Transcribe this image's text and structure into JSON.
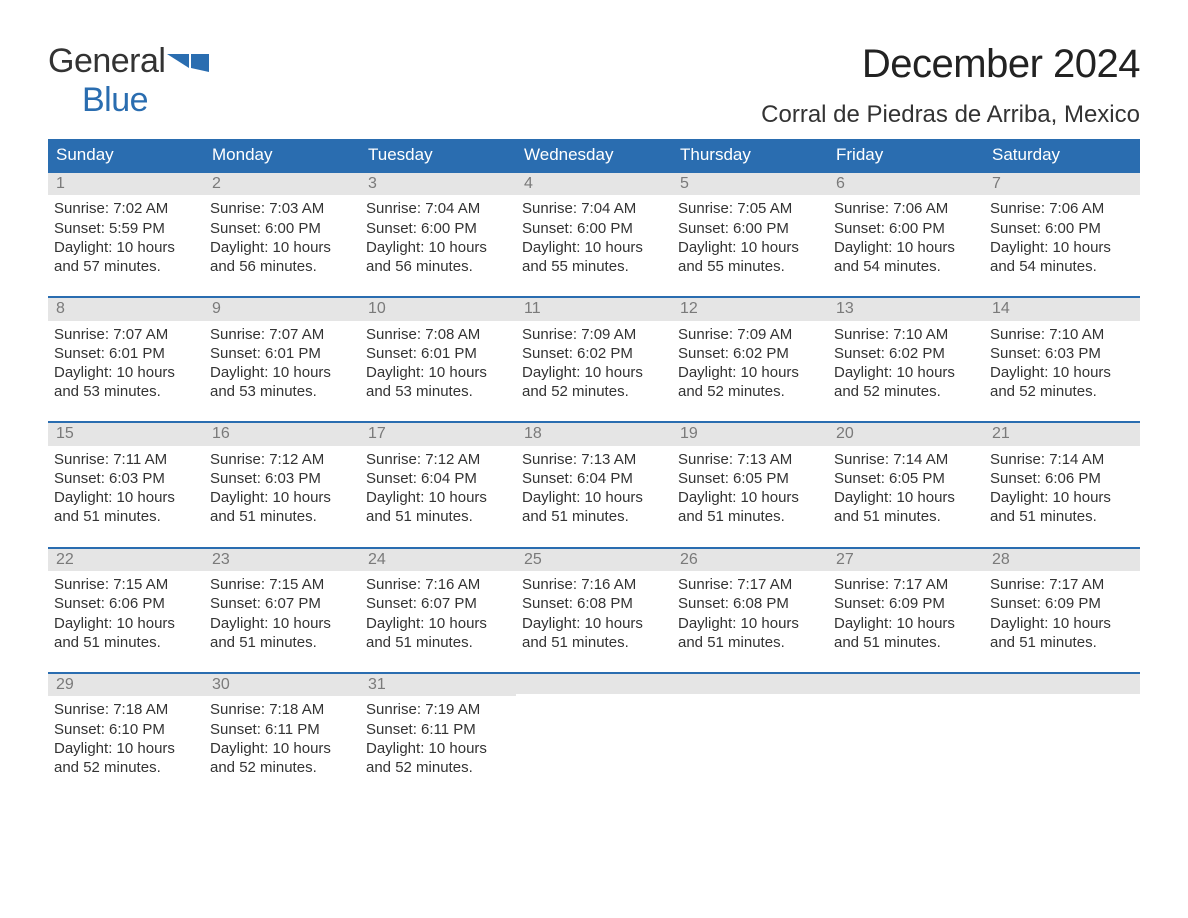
{
  "logo": {
    "general": "General",
    "blue": "Blue"
  },
  "title": "December 2024",
  "location": "Corral de Piedras de Arriba, Mexico",
  "colors": {
    "header_bg": "#2a6db0",
    "header_text": "#ffffff",
    "daynum_bg": "#e5e5e5",
    "daynum_text": "#7a7a7a",
    "border": "#2a6db0",
    "body_text": "#333333",
    "page_bg": "#ffffff"
  },
  "typography": {
    "title_fontsize": 40,
    "location_fontsize": 24,
    "dayhead_fontsize": 17,
    "body_fontsize": 15,
    "font_family": "Arial"
  },
  "day_headers": [
    "Sunday",
    "Monday",
    "Tuesday",
    "Wednesday",
    "Thursday",
    "Friday",
    "Saturday"
  ],
  "weeks": [
    [
      {
        "n": "1",
        "sunrise": "Sunrise: 7:02 AM",
        "sunset": "Sunset: 5:59 PM",
        "day1": "Daylight: 10 hours",
        "day2": "and 57 minutes."
      },
      {
        "n": "2",
        "sunrise": "Sunrise: 7:03 AM",
        "sunset": "Sunset: 6:00 PM",
        "day1": "Daylight: 10 hours",
        "day2": "and 56 minutes."
      },
      {
        "n": "3",
        "sunrise": "Sunrise: 7:04 AM",
        "sunset": "Sunset: 6:00 PM",
        "day1": "Daylight: 10 hours",
        "day2": "and 56 minutes."
      },
      {
        "n": "4",
        "sunrise": "Sunrise: 7:04 AM",
        "sunset": "Sunset: 6:00 PM",
        "day1": "Daylight: 10 hours",
        "day2": "and 55 minutes."
      },
      {
        "n": "5",
        "sunrise": "Sunrise: 7:05 AM",
        "sunset": "Sunset: 6:00 PM",
        "day1": "Daylight: 10 hours",
        "day2": "and 55 minutes."
      },
      {
        "n": "6",
        "sunrise": "Sunrise: 7:06 AM",
        "sunset": "Sunset: 6:00 PM",
        "day1": "Daylight: 10 hours",
        "day2": "and 54 minutes."
      },
      {
        "n": "7",
        "sunrise": "Sunrise: 7:06 AM",
        "sunset": "Sunset: 6:00 PM",
        "day1": "Daylight: 10 hours",
        "day2": "and 54 minutes."
      }
    ],
    [
      {
        "n": "8",
        "sunrise": "Sunrise: 7:07 AM",
        "sunset": "Sunset: 6:01 PM",
        "day1": "Daylight: 10 hours",
        "day2": "and 53 minutes."
      },
      {
        "n": "9",
        "sunrise": "Sunrise: 7:07 AM",
        "sunset": "Sunset: 6:01 PM",
        "day1": "Daylight: 10 hours",
        "day2": "and 53 minutes."
      },
      {
        "n": "10",
        "sunrise": "Sunrise: 7:08 AM",
        "sunset": "Sunset: 6:01 PM",
        "day1": "Daylight: 10 hours",
        "day2": "and 53 minutes."
      },
      {
        "n": "11",
        "sunrise": "Sunrise: 7:09 AM",
        "sunset": "Sunset: 6:02 PM",
        "day1": "Daylight: 10 hours",
        "day2": "and 52 minutes."
      },
      {
        "n": "12",
        "sunrise": "Sunrise: 7:09 AM",
        "sunset": "Sunset: 6:02 PM",
        "day1": "Daylight: 10 hours",
        "day2": "and 52 minutes."
      },
      {
        "n": "13",
        "sunrise": "Sunrise: 7:10 AM",
        "sunset": "Sunset: 6:02 PM",
        "day1": "Daylight: 10 hours",
        "day2": "and 52 minutes."
      },
      {
        "n": "14",
        "sunrise": "Sunrise: 7:10 AM",
        "sunset": "Sunset: 6:03 PM",
        "day1": "Daylight: 10 hours",
        "day2": "and 52 minutes."
      }
    ],
    [
      {
        "n": "15",
        "sunrise": "Sunrise: 7:11 AM",
        "sunset": "Sunset: 6:03 PM",
        "day1": "Daylight: 10 hours",
        "day2": "and 51 minutes."
      },
      {
        "n": "16",
        "sunrise": "Sunrise: 7:12 AM",
        "sunset": "Sunset: 6:03 PM",
        "day1": "Daylight: 10 hours",
        "day2": "and 51 minutes."
      },
      {
        "n": "17",
        "sunrise": "Sunrise: 7:12 AM",
        "sunset": "Sunset: 6:04 PM",
        "day1": "Daylight: 10 hours",
        "day2": "and 51 minutes."
      },
      {
        "n": "18",
        "sunrise": "Sunrise: 7:13 AM",
        "sunset": "Sunset: 6:04 PM",
        "day1": "Daylight: 10 hours",
        "day2": "and 51 minutes."
      },
      {
        "n": "19",
        "sunrise": "Sunrise: 7:13 AM",
        "sunset": "Sunset: 6:05 PM",
        "day1": "Daylight: 10 hours",
        "day2": "and 51 minutes."
      },
      {
        "n": "20",
        "sunrise": "Sunrise: 7:14 AM",
        "sunset": "Sunset: 6:05 PM",
        "day1": "Daylight: 10 hours",
        "day2": "and 51 minutes."
      },
      {
        "n": "21",
        "sunrise": "Sunrise: 7:14 AM",
        "sunset": "Sunset: 6:06 PM",
        "day1": "Daylight: 10 hours",
        "day2": "and 51 minutes."
      }
    ],
    [
      {
        "n": "22",
        "sunrise": "Sunrise: 7:15 AM",
        "sunset": "Sunset: 6:06 PM",
        "day1": "Daylight: 10 hours",
        "day2": "and 51 minutes."
      },
      {
        "n": "23",
        "sunrise": "Sunrise: 7:15 AM",
        "sunset": "Sunset: 6:07 PM",
        "day1": "Daylight: 10 hours",
        "day2": "and 51 minutes."
      },
      {
        "n": "24",
        "sunrise": "Sunrise: 7:16 AM",
        "sunset": "Sunset: 6:07 PM",
        "day1": "Daylight: 10 hours",
        "day2": "and 51 minutes."
      },
      {
        "n": "25",
        "sunrise": "Sunrise: 7:16 AM",
        "sunset": "Sunset: 6:08 PM",
        "day1": "Daylight: 10 hours",
        "day2": "and 51 minutes."
      },
      {
        "n": "26",
        "sunrise": "Sunrise: 7:17 AM",
        "sunset": "Sunset: 6:08 PM",
        "day1": "Daylight: 10 hours",
        "day2": "and 51 minutes."
      },
      {
        "n": "27",
        "sunrise": "Sunrise: 7:17 AM",
        "sunset": "Sunset: 6:09 PM",
        "day1": "Daylight: 10 hours",
        "day2": "and 51 minutes."
      },
      {
        "n": "28",
        "sunrise": "Sunrise: 7:17 AM",
        "sunset": "Sunset: 6:09 PM",
        "day1": "Daylight: 10 hours",
        "day2": "and 51 minutes."
      }
    ],
    [
      {
        "n": "29",
        "sunrise": "Sunrise: 7:18 AM",
        "sunset": "Sunset: 6:10 PM",
        "day1": "Daylight: 10 hours",
        "day2": "and 52 minutes."
      },
      {
        "n": "30",
        "sunrise": "Sunrise: 7:18 AM",
        "sunset": "Sunset: 6:11 PM",
        "day1": "Daylight: 10 hours",
        "day2": "and 52 minutes."
      },
      {
        "n": "31",
        "sunrise": "Sunrise: 7:19 AM",
        "sunset": "Sunset: 6:11 PM",
        "day1": "Daylight: 10 hours",
        "day2": "and 52 minutes."
      },
      {
        "empty": true
      },
      {
        "empty": true
      },
      {
        "empty": true
      },
      {
        "empty": true
      }
    ]
  ]
}
